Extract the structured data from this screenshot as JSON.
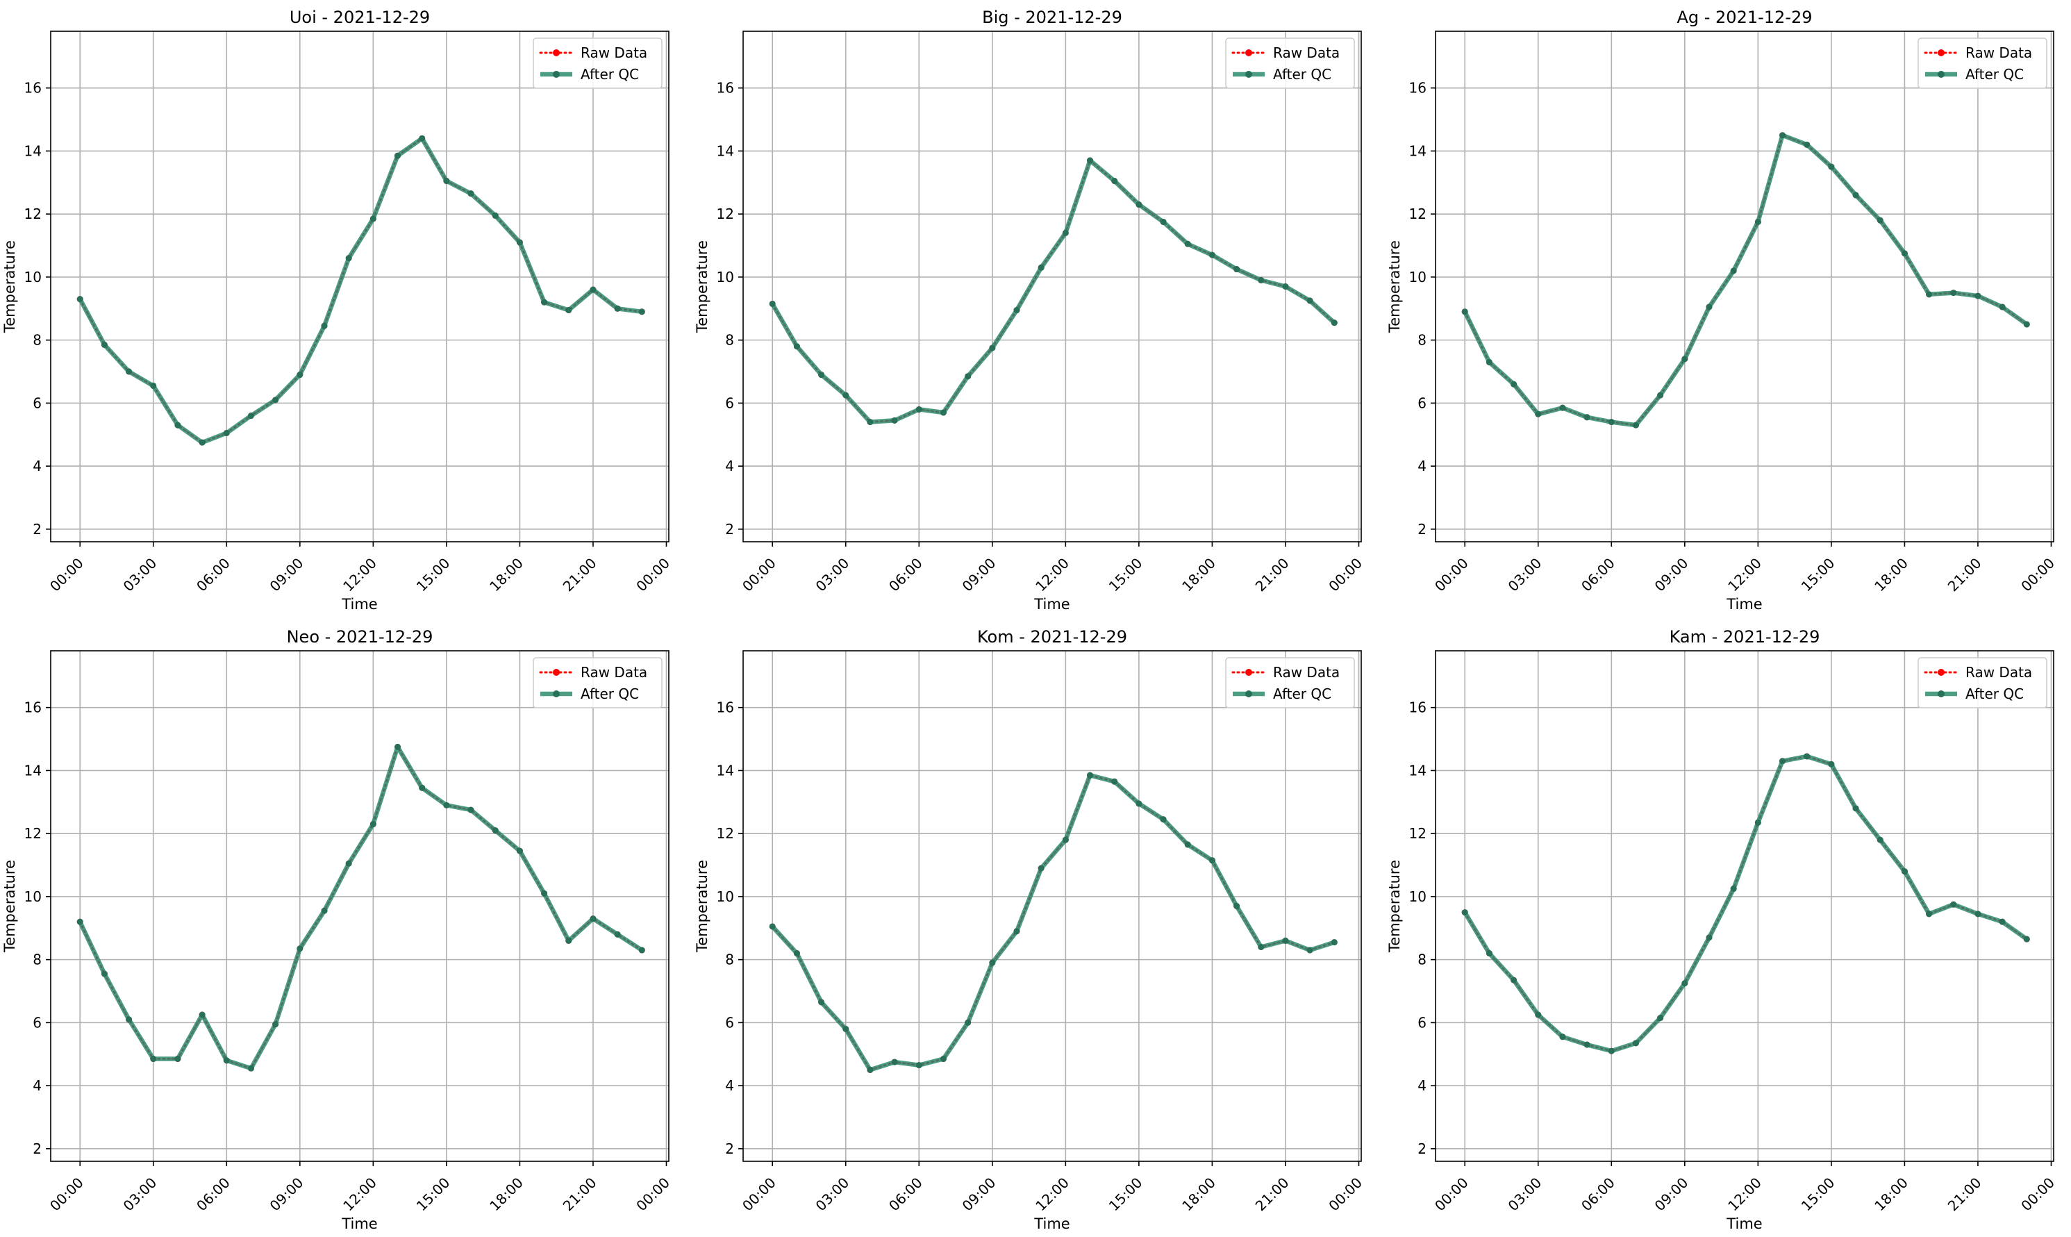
{
  "chart_data": [
    {
      "type": "line",
      "title": "Uoi - 2021-12-29",
      "xlabel": "Time",
      "ylabel": "Temperature",
      "xticks": [
        "00:00",
        "03:00",
        "06:00",
        "09:00",
        "12:00",
        "15:00",
        "18:00",
        "21:00",
        "00:00"
      ],
      "yticks": [
        "2",
        "4",
        "6",
        "8",
        "10",
        "12",
        "14",
        "16"
      ],
      "xlim": [
        -1.2,
        24.1
      ],
      "ylim": [
        1.6,
        17.8
      ],
      "grid": true,
      "legend": "top-right",
      "x": [
        0,
        1,
        2,
        3,
        4,
        5,
        6,
        7,
        8,
        9,
        10,
        11,
        12,
        13,
        14,
        15,
        16,
        17,
        18,
        19,
        20,
        21,
        22,
        23
      ],
      "series": [
        {
          "name": "Raw Data",
          "color": "#ff0000",
          "style": "dotted",
          "values": [
            9.3,
            7.85,
            7.0,
            6.55,
            5.3,
            4.75,
            5.05,
            5.6,
            6.1,
            6.9,
            8.45,
            10.6,
            11.85,
            13.85,
            14.4,
            13.05,
            12.65,
            11.95,
            11.1,
            9.2,
            8.95,
            9.6,
            9.0,
            8.9
          ]
        },
        {
          "name": "After QC",
          "color": "#2e8b6f",
          "style": "solid",
          "values": [
            9.3,
            7.85,
            7.0,
            6.55,
            5.3,
            4.75,
            5.05,
            5.6,
            6.1,
            6.9,
            8.45,
            10.6,
            11.85,
            13.85,
            14.4,
            13.05,
            12.65,
            11.95,
            11.1,
            9.2,
            8.95,
            9.6,
            9.0,
            8.9
          ]
        }
      ]
    },
    {
      "type": "line",
      "title": "Big - 2021-12-29",
      "xlabel": "Time",
      "ylabel": "Temperature",
      "xticks": [
        "00:00",
        "03:00",
        "06:00",
        "09:00",
        "12:00",
        "15:00",
        "18:00",
        "21:00",
        "00:00"
      ],
      "yticks": [
        "2",
        "4",
        "6",
        "8",
        "10",
        "12",
        "14",
        "16"
      ],
      "xlim": [
        -1.2,
        24.1
      ],
      "ylim": [
        1.6,
        17.8
      ],
      "grid": true,
      "legend": "top-right",
      "x": [
        0,
        1,
        2,
        3,
        4,
        5,
        6,
        7,
        8,
        9,
        10,
        11,
        12,
        13,
        14,
        15,
        16,
        17,
        18,
        19,
        20,
        21,
        22,
        23
      ],
      "series": [
        {
          "name": "Raw Data",
          "color": "#ff0000",
          "style": "dotted",
          "values": [
            9.15,
            7.8,
            6.9,
            6.25,
            5.4,
            5.45,
            5.8,
            5.7,
            6.85,
            7.75,
            8.95,
            10.3,
            11.4,
            13.7,
            13.05,
            12.3,
            11.75,
            11.05,
            10.7,
            10.25,
            9.9,
            9.7,
            9.25,
            8.55
          ]
        },
        {
          "name": "After QC",
          "color": "#2e8b6f",
          "style": "solid",
          "values": [
            9.15,
            7.8,
            6.9,
            6.25,
            5.4,
            5.45,
            5.8,
            5.7,
            6.85,
            7.75,
            8.95,
            10.3,
            11.4,
            13.7,
            13.05,
            12.3,
            11.75,
            11.05,
            10.7,
            10.25,
            9.9,
            9.7,
            9.25,
            8.55
          ]
        }
      ]
    },
    {
      "type": "line",
      "title": "Ag - 2021-12-29",
      "xlabel": "Time",
      "ylabel": "Temperature",
      "xticks": [
        "00:00",
        "03:00",
        "06:00",
        "09:00",
        "12:00",
        "15:00",
        "18:00",
        "21:00",
        "00:00"
      ],
      "yticks": [
        "2",
        "4",
        "6",
        "8",
        "10",
        "12",
        "14",
        "16"
      ],
      "xlim": [
        -1.2,
        24.1
      ],
      "ylim": [
        1.6,
        17.8
      ],
      "grid": true,
      "legend": "top-right",
      "x": [
        0,
        1,
        2,
        3,
        4,
        5,
        6,
        7,
        8,
        9,
        10,
        11,
        12,
        13,
        14,
        15,
        16,
        17,
        18,
        19,
        20,
        21,
        22,
        23
      ],
      "series": [
        {
          "name": "Raw Data",
          "color": "#ff0000",
          "style": "dotted",
          "values": [
            8.9,
            7.3,
            6.6,
            5.65,
            5.85,
            5.55,
            5.4,
            5.3,
            6.25,
            7.4,
            9.05,
            10.2,
            11.75,
            14.5,
            14.2,
            13.5,
            12.6,
            11.8,
            10.75,
            9.45,
            9.5,
            9.4,
            9.05,
            8.5
          ]
        },
        {
          "name": "After QC",
          "color": "#2e8b6f",
          "style": "solid",
          "values": [
            8.9,
            7.3,
            6.6,
            5.65,
            5.85,
            5.55,
            5.4,
            5.3,
            6.25,
            7.4,
            9.05,
            10.2,
            11.75,
            14.5,
            14.2,
            13.5,
            12.6,
            11.8,
            10.75,
            9.45,
            9.5,
            9.4,
            9.05,
            8.5
          ]
        }
      ]
    },
    {
      "type": "line",
      "title": "Neo - 2021-12-29",
      "xlabel": "Time",
      "ylabel": "Temperature",
      "xticks": [
        "00:00",
        "03:00",
        "06:00",
        "09:00",
        "12:00",
        "15:00",
        "18:00",
        "21:00",
        "00:00"
      ],
      "yticks": [
        "2",
        "4",
        "6",
        "8",
        "10",
        "12",
        "14",
        "16"
      ],
      "xlim": [
        -1.2,
        24.1
      ],
      "ylim": [
        1.6,
        17.8
      ],
      "grid": true,
      "legend": "top-right",
      "x": [
        0,
        1,
        2,
        3,
        4,
        5,
        6,
        7,
        8,
        9,
        10,
        11,
        12,
        13,
        14,
        15,
        16,
        17,
        18,
        19,
        20,
        21,
        22,
        23
      ],
      "series": [
        {
          "name": "Raw Data",
          "color": "#ff0000",
          "style": "dotted",
          "values": [
            9.2,
            7.55,
            6.1,
            4.85,
            4.85,
            6.25,
            4.8,
            4.55,
            5.95,
            8.35,
            9.55,
            11.05,
            12.3,
            14.75,
            13.45,
            12.9,
            12.75,
            12.1,
            11.45,
            10.1,
            8.6,
            9.3,
            8.8,
            8.3
          ]
        },
        {
          "name": "After QC",
          "color": "#2e8b6f",
          "style": "solid",
          "values": [
            9.2,
            7.55,
            6.1,
            4.85,
            4.85,
            6.25,
            4.8,
            4.55,
            5.95,
            8.35,
            9.55,
            11.05,
            12.3,
            14.75,
            13.45,
            12.9,
            12.75,
            12.1,
            11.45,
            10.1,
            8.6,
            9.3,
            8.8,
            8.3
          ]
        }
      ]
    },
    {
      "type": "line",
      "title": "Kom - 2021-12-29",
      "xlabel": "Time",
      "ylabel": "Temperature",
      "xticks": [
        "00:00",
        "03:00",
        "06:00",
        "09:00",
        "12:00",
        "15:00",
        "18:00",
        "21:00",
        "00:00"
      ],
      "yticks": [
        "2",
        "4",
        "6",
        "8",
        "10",
        "12",
        "14",
        "16"
      ],
      "xlim": [
        -1.2,
        24.1
      ],
      "ylim": [
        1.6,
        17.8
      ],
      "grid": true,
      "legend": "top-right",
      "x": [
        0,
        1,
        2,
        3,
        4,
        5,
        6,
        7,
        8,
        9,
        10,
        11,
        12,
        13,
        14,
        15,
        16,
        17,
        18,
        19,
        20,
        21,
        22,
        23
      ],
      "series": [
        {
          "name": "Raw Data",
          "color": "#ff0000",
          "style": "dotted",
          "values": [
            9.05,
            8.2,
            6.65,
            5.8,
            4.5,
            4.75,
            4.65,
            4.85,
            6.0,
            7.9,
            8.9,
            10.9,
            11.8,
            13.85,
            13.65,
            12.95,
            12.45,
            11.65,
            11.15,
            9.7,
            8.4,
            8.6,
            8.3,
            8.55
          ]
        },
        {
          "name": "After QC",
          "color": "#2e8b6f",
          "style": "solid",
          "values": [
            9.05,
            8.2,
            6.65,
            5.8,
            4.5,
            4.75,
            4.65,
            4.85,
            6.0,
            7.9,
            8.9,
            10.9,
            11.8,
            13.85,
            13.65,
            12.95,
            12.45,
            11.65,
            11.15,
            9.7,
            8.4,
            8.6,
            8.3,
            8.55
          ]
        }
      ]
    },
    {
      "type": "line",
      "title": "Kam - 2021-12-29",
      "xlabel": "Time",
      "ylabel": "Temperature",
      "xticks": [
        "00:00",
        "03:00",
        "06:00",
        "09:00",
        "12:00",
        "15:00",
        "18:00",
        "21:00",
        "00:00"
      ],
      "yticks": [
        "2",
        "4",
        "6",
        "8",
        "10",
        "12",
        "14",
        "16"
      ],
      "xlim": [
        -1.2,
        24.1
      ],
      "ylim": [
        1.6,
        17.8
      ],
      "grid": true,
      "legend": "top-right",
      "x": [
        0,
        1,
        2,
        3,
        4,
        5,
        6,
        7,
        8,
        9,
        10,
        11,
        12,
        13,
        14,
        15,
        16,
        17,
        18,
        19,
        20,
        21,
        22,
        23
      ],
      "series": [
        {
          "name": "Raw Data",
          "color": "#ff0000",
          "style": "dotted",
          "values": [
            9.5,
            8.2,
            7.35,
            6.25,
            5.55,
            5.3,
            5.1,
            5.35,
            6.15,
            7.25,
            8.7,
            10.25,
            12.35,
            14.3,
            14.45,
            14.2,
            12.8,
            11.8,
            10.8,
            9.45,
            9.75,
            9.45,
            9.2,
            8.65
          ]
        },
        {
          "name": "After QC",
          "color": "#2e8b6f",
          "style": "solid",
          "values": [
            9.5,
            8.2,
            7.35,
            6.25,
            5.55,
            5.3,
            5.1,
            5.35,
            6.15,
            7.25,
            8.7,
            10.25,
            12.35,
            14.3,
            14.45,
            14.2,
            12.8,
            11.8,
            10.8,
            9.45,
            9.75,
            9.45,
            9.2,
            8.65
          ]
        }
      ]
    }
  ]
}
